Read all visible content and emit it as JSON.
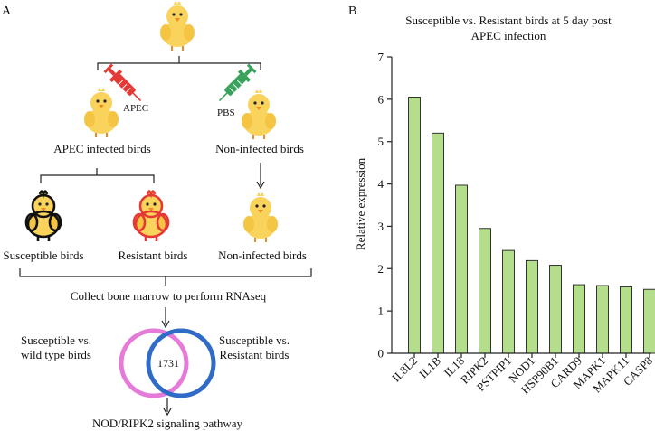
{
  "panel_a": {
    "label": "A",
    "apec_tag": "APEC",
    "pbs_tag": "PBS",
    "infected_label": "APEC infected birds",
    "noninfected_label": "Non-infected birds",
    "susceptible_label": "Susceptible birds",
    "resistant_label": "Resistant birds",
    "noninfected_label_2": "Non-infected birds",
    "collect_label": "Collect bone marrow to perform RNAseq",
    "venn_left_line1": "Susceptible vs.",
    "venn_left_line2": "wild type birds",
    "venn_right_line1": "Susceptible vs.",
    "venn_right_line2": "Resistant birds",
    "venn_overlap": "1731",
    "pathway_label": "NOD/RIPK2 signaling pathway",
    "colors": {
      "chick_body": "#f9d35b",
      "syringe_red": "#e53935",
      "syringe_green": "#3aa35b",
      "venn_left": "#e57ad9",
      "venn_right": "#2f6bc7"
    }
  },
  "panel_b": {
    "label": "B"
  },
  "chart_data": {
    "type": "bar",
    "title_line1": "Susceptible vs. Resistant birds at 5 day post",
    "title_line2": "APEC infection",
    "xlabel": "",
    "ylabel": "Relative expression",
    "ylim": [
      0,
      7
    ],
    "yticks": [
      "0",
      "1",
      "2",
      "3",
      "4",
      "5",
      "6",
      "7"
    ],
    "categories": [
      "IL8L2",
      "IL1B",
      "IL18",
      "RIPK2",
      "PSTPIP1",
      "NOD1",
      "HSP90B1",
      "CARD9",
      "MAPK1",
      "MAPK11",
      "CASP8"
    ],
    "values": [
      6.05,
      5.2,
      3.97,
      2.95,
      2.43,
      2.19,
      2.08,
      1.62,
      1.6,
      1.57,
      1.51
    ],
    "bar_color": "#b5de8c",
    "bar_edge": "#333333",
    "grid": false,
    "legend": "none"
  }
}
